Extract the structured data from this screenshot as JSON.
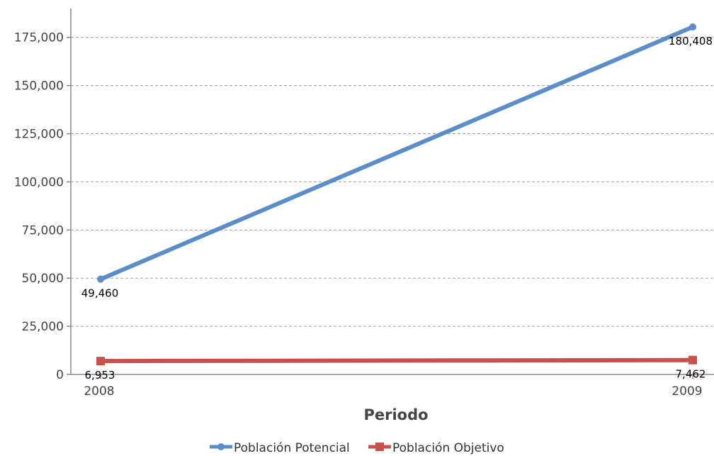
{
  "chart_data": {
    "type": "line",
    "title": "",
    "xlabel": "Periodo",
    "ylabel": "",
    "categories": [
      "2008",
      "2009"
    ],
    "ylim": [
      0,
      190000
    ],
    "yticks": [
      0,
      25000,
      50000,
      75000,
      100000,
      125000,
      150000,
      175000
    ],
    "ytick_labels": [
      "0",
      "25,000",
      "50,000",
      "75,000",
      "100,000",
      "125,000",
      "150,000",
      "175,000"
    ],
    "grid": true,
    "legend_position": "bottom",
    "series": [
      {
        "name": "Población Potencial",
        "values": [
          49460,
          180408
        ],
        "labels": [
          "49,460",
          "180,408"
        ],
        "color": "#5b8ec9",
        "marker": "circle"
      },
      {
        "name": "Población Objetivo",
        "values": [
          6953,
          7462
        ],
        "labels": [
          "6,953",
          "7,462"
        ],
        "color": "#c9504d",
        "marker": "square"
      }
    ]
  }
}
